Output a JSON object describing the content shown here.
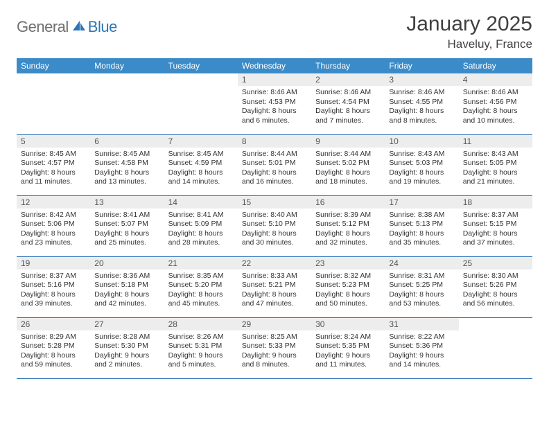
{
  "logo": {
    "textA": "General",
    "textB": "Blue"
  },
  "title": "January 2025",
  "location": "Haveluy, France",
  "colors": {
    "header_bg": "#3b8bc8",
    "header_fg": "#ffffff",
    "daynum_bg": "#ededed",
    "rule": "#2e75b6",
    "logo_gray": "#6f6f6f",
    "logo_blue": "#2e75b6",
    "title_color": "#404040"
  },
  "weekdays": [
    "Sunday",
    "Monday",
    "Tuesday",
    "Wednesday",
    "Thursday",
    "Friday",
    "Saturday"
  ],
  "weeks": [
    [
      {
        "n": "",
        "sr": "",
        "ss": "",
        "dl": ""
      },
      {
        "n": "",
        "sr": "",
        "ss": "",
        "dl": ""
      },
      {
        "n": "",
        "sr": "",
        "ss": "",
        "dl": ""
      },
      {
        "n": "1",
        "sr": "Sunrise: 8:46 AM",
        "ss": "Sunset: 4:53 PM",
        "dl": "Daylight: 8 hours and 6 minutes."
      },
      {
        "n": "2",
        "sr": "Sunrise: 8:46 AM",
        "ss": "Sunset: 4:54 PM",
        "dl": "Daylight: 8 hours and 7 minutes."
      },
      {
        "n": "3",
        "sr": "Sunrise: 8:46 AM",
        "ss": "Sunset: 4:55 PM",
        "dl": "Daylight: 8 hours and 8 minutes."
      },
      {
        "n": "4",
        "sr": "Sunrise: 8:46 AM",
        "ss": "Sunset: 4:56 PM",
        "dl": "Daylight: 8 hours and 10 minutes."
      }
    ],
    [
      {
        "n": "5",
        "sr": "Sunrise: 8:45 AM",
        "ss": "Sunset: 4:57 PM",
        "dl": "Daylight: 8 hours and 11 minutes."
      },
      {
        "n": "6",
        "sr": "Sunrise: 8:45 AM",
        "ss": "Sunset: 4:58 PM",
        "dl": "Daylight: 8 hours and 13 minutes."
      },
      {
        "n": "7",
        "sr": "Sunrise: 8:45 AM",
        "ss": "Sunset: 4:59 PM",
        "dl": "Daylight: 8 hours and 14 minutes."
      },
      {
        "n": "8",
        "sr": "Sunrise: 8:44 AM",
        "ss": "Sunset: 5:01 PM",
        "dl": "Daylight: 8 hours and 16 minutes."
      },
      {
        "n": "9",
        "sr": "Sunrise: 8:44 AM",
        "ss": "Sunset: 5:02 PM",
        "dl": "Daylight: 8 hours and 18 minutes."
      },
      {
        "n": "10",
        "sr": "Sunrise: 8:43 AM",
        "ss": "Sunset: 5:03 PM",
        "dl": "Daylight: 8 hours and 19 minutes."
      },
      {
        "n": "11",
        "sr": "Sunrise: 8:43 AM",
        "ss": "Sunset: 5:05 PM",
        "dl": "Daylight: 8 hours and 21 minutes."
      }
    ],
    [
      {
        "n": "12",
        "sr": "Sunrise: 8:42 AM",
        "ss": "Sunset: 5:06 PM",
        "dl": "Daylight: 8 hours and 23 minutes."
      },
      {
        "n": "13",
        "sr": "Sunrise: 8:41 AM",
        "ss": "Sunset: 5:07 PM",
        "dl": "Daylight: 8 hours and 25 minutes."
      },
      {
        "n": "14",
        "sr": "Sunrise: 8:41 AM",
        "ss": "Sunset: 5:09 PM",
        "dl": "Daylight: 8 hours and 28 minutes."
      },
      {
        "n": "15",
        "sr": "Sunrise: 8:40 AM",
        "ss": "Sunset: 5:10 PM",
        "dl": "Daylight: 8 hours and 30 minutes."
      },
      {
        "n": "16",
        "sr": "Sunrise: 8:39 AM",
        "ss": "Sunset: 5:12 PM",
        "dl": "Daylight: 8 hours and 32 minutes."
      },
      {
        "n": "17",
        "sr": "Sunrise: 8:38 AM",
        "ss": "Sunset: 5:13 PM",
        "dl": "Daylight: 8 hours and 35 minutes."
      },
      {
        "n": "18",
        "sr": "Sunrise: 8:37 AM",
        "ss": "Sunset: 5:15 PM",
        "dl": "Daylight: 8 hours and 37 minutes."
      }
    ],
    [
      {
        "n": "19",
        "sr": "Sunrise: 8:37 AM",
        "ss": "Sunset: 5:16 PM",
        "dl": "Daylight: 8 hours and 39 minutes."
      },
      {
        "n": "20",
        "sr": "Sunrise: 8:36 AM",
        "ss": "Sunset: 5:18 PM",
        "dl": "Daylight: 8 hours and 42 minutes."
      },
      {
        "n": "21",
        "sr": "Sunrise: 8:35 AM",
        "ss": "Sunset: 5:20 PM",
        "dl": "Daylight: 8 hours and 45 minutes."
      },
      {
        "n": "22",
        "sr": "Sunrise: 8:33 AM",
        "ss": "Sunset: 5:21 PM",
        "dl": "Daylight: 8 hours and 47 minutes."
      },
      {
        "n": "23",
        "sr": "Sunrise: 8:32 AM",
        "ss": "Sunset: 5:23 PM",
        "dl": "Daylight: 8 hours and 50 minutes."
      },
      {
        "n": "24",
        "sr": "Sunrise: 8:31 AM",
        "ss": "Sunset: 5:25 PM",
        "dl": "Daylight: 8 hours and 53 minutes."
      },
      {
        "n": "25",
        "sr": "Sunrise: 8:30 AM",
        "ss": "Sunset: 5:26 PM",
        "dl": "Daylight: 8 hours and 56 minutes."
      }
    ],
    [
      {
        "n": "26",
        "sr": "Sunrise: 8:29 AM",
        "ss": "Sunset: 5:28 PM",
        "dl": "Daylight: 8 hours and 59 minutes."
      },
      {
        "n": "27",
        "sr": "Sunrise: 8:28 AM",
        "ss": "Sunset: 5:30 PM",
        "dl": "Daylight: 9 hours and 2 minutes."
      },
      {
        "n": "28",
        "sr": "Sunrise: 8:26 AM",
        "ss": "Sunset: 5:31 PM",
        "dl": "Daylight: 9 hours and 5 minutes."
      },
      {
        "n": "29",
        "sr": "Sunrise: 8:25 AM",
        "ss": "Sunset: 5:33 PM",
        "dl": "Daylight: 9 hours and 8 minutes."
      },
      {
        "n": "30",
        "sr": "Sunrise: 8:24 AM",
        "ss": "Sunset: 5:35 PM",
        "dl": "Daylight: 9 hours and 11 minutes."
      },
      {
        "n": "31",
        "sr": "Sunrise: 8:22 AM",
        "ss": "Sunset: 5:36 PM",
        "dl": "Daylight: 9 hours and 14 minutes."
      },
      {
        "n": "",
        "sr": "",
        "ss": "",
        "dl": ""
      }
    ]
  ]
}
